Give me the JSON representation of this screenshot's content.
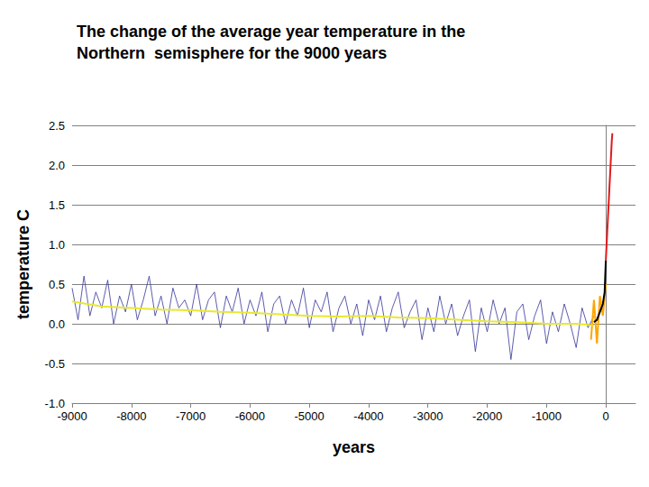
{
  "chart_data": {
    "type": "line",
    "title": "The change of the average year temperature in the\nNorthern  semisphere for the 9000 years",
    "xlabel": "years",
    "ylabel": "temperature C",
    "xlim": [
      -9000,
      500
    ],
    "xticks": [
      -9000,
      -8000,
      -7000,
      -6000,
      -5000,
      -4000,
      -3000,
      -2000,
      -1000,
      0
    ],
    "ylim": [
      -1,
      2.5
    ],
    "yticks": [
      {
        "value": -1,
        "label": "-1.0"
      },
      -0.5,
      {
        "value": 0,
        "label": "0.0"
      },
      0.5,
      {
        "value": 1,
        "label": "1.0"
      },
      1.5,
      {
        "value": 2,
        "label": "2.0"
      },
      2.5
    ],
    "grid": true,
    "series": [
      {
        "color": "#333399",
        "x": [
          -9000,
          -8900,
          -8800,
          -8700,
          -8600,
          -8500,
          -8400,
          -8300,
          -8200,
          -8100,
          -8000,
          -7900,
          -7800,
          -7700,
          -7600,
          -7500,
          -7400,
          -7300,
          -7200,
          -7100,
          -7000,
          -6900,
          -6800,
          -6700,
          -6600,
          -6500,
          -6400,
          -6300,
          -6200,
          -6100,
          -6000,
          -5900,
          -5800,
          -5700,
          -5600,
          -5500,
          -5400,
          -5300,
          -5200,
          -5100,
          -5000,
          -4900,
          -4800,
          -4700,
          -4600,
          -4500,
          -4400,
          -4300,
          -4200,
          -4100,
          -4000,
          -3900,
          -3800,
          -3700,
          -3600,
          -3500,
          -3400,
          -3300,
          -3200,
          -3100,
          -3000,
          -2900,
          -2800,
          -2700,
          -2600,
          -2500,
          -2400,
          -2300,
          -2200,
          -2100,
          -2000,
          -1900,
          -1800,
          -1700,
          -1600,
          -1500,
          -1400,
          -1300,
          -1200,
          -1100,
          -1000,
          -900,
          -800,
          -700,
          -600,
          -500,
          -400,
          -300,
          -200
        ],
        "values": [
          0.45,
          0.05,
          0.6,
          0.1,
          0.4,
          0.2,
          0.55,
          0.0,
          0.35,
          0.15,
          0.5,
          0.05,
          0.3,
          0.6,
          0.1,
          0.35,
          0.0,
          0.45,
          0.2,
          0.3,
          0.1,
          0.5,
          0.05,
          0.3,
          0.4,
          -0.05,
          0.35,
          0.15,
          0.45,
          0.0,
          0.3,
          0.1,
          0.4,
          -0.1,
          0.25,
          0.35,
          0.0,
          0.3,
          0.1,
          0.45,
          -0.05,
          0.3,
          0.15,
          0.4,
          -0.1,
          0.2,
          0.35,
          0.0,
          0.25,
          -0.15,
          0.3,
          0.05,
          0.35,
          -0.1,
          0.2,
          0.4,
          -0.05,
          0.15,
          0.3,
          -0.2,
          0.2,
          -0.1,
          0.35,
          0.0,
          0.25,
          -0.15,
          0.1,
          0.3,
          -0.35,
          0.2,
          -0.1,
          0.3,
          0.0,
          0.2,
          -0.45,
          0.15,
          0.25,
          -0.2,
          0.1,
          0.3,
          -0.25,
          0.15,
          -0.1,
          0.25,
          0.0,
          -0.3,
          0.2,
          -0.05,
          0.1
        ]
      },
      {
        "color": "#ffa500",
        "x": [
          -250,
          -200,
          -150,
          -100,
          -50,
          0
        ],
        "values": [
          -0.2,
          0.3,
          -0.25,
          0.35,
          0.1,
          0.5
        ]
      },
      {
        "color": "#e8e830",
        "x": [
          -9000,
          -8500,
          -8000,
          -7500,
          -7000,
          -6500,
          -6000,
          -5500,
          -5000,
          -4500,
          -4000,
          -3500,
          -3000,
          -2500,
          -2000,
          -1500,
          -1000,
          -500,
          -200
        ],
        "values": [
          0.28,
          0.22,
          0.2,
          0.18,
          0.17,
          0.15,
          0.14,
          0.12,
          0.1,
          0.09,
          0.1,
          0.08,
          0.07,
          0.05,
          0.03,
          0.02,
          0.0,
          0.0,
          -0.02
        ]
      },
      {
        "color": "#000000",
        "x": [
          -200,
          -150,
          -100,
          -50,
          -20,
          0
        ],
        "values": [
          0.02,
          0.05,
          0.15,
          0.25,
          0.4,
          0.8
        ]
      },
      {
        "color": "#e31a1c",
        "x": [
          0,
          20,
          40,
          60,
          80,
          100,
          110
        ],
        "values": [
          0.8,
          1.1,
          1.4,
          1.7,
          2.0,
          2.3,
          2.4
        ]
      }
    ]
  }
}
